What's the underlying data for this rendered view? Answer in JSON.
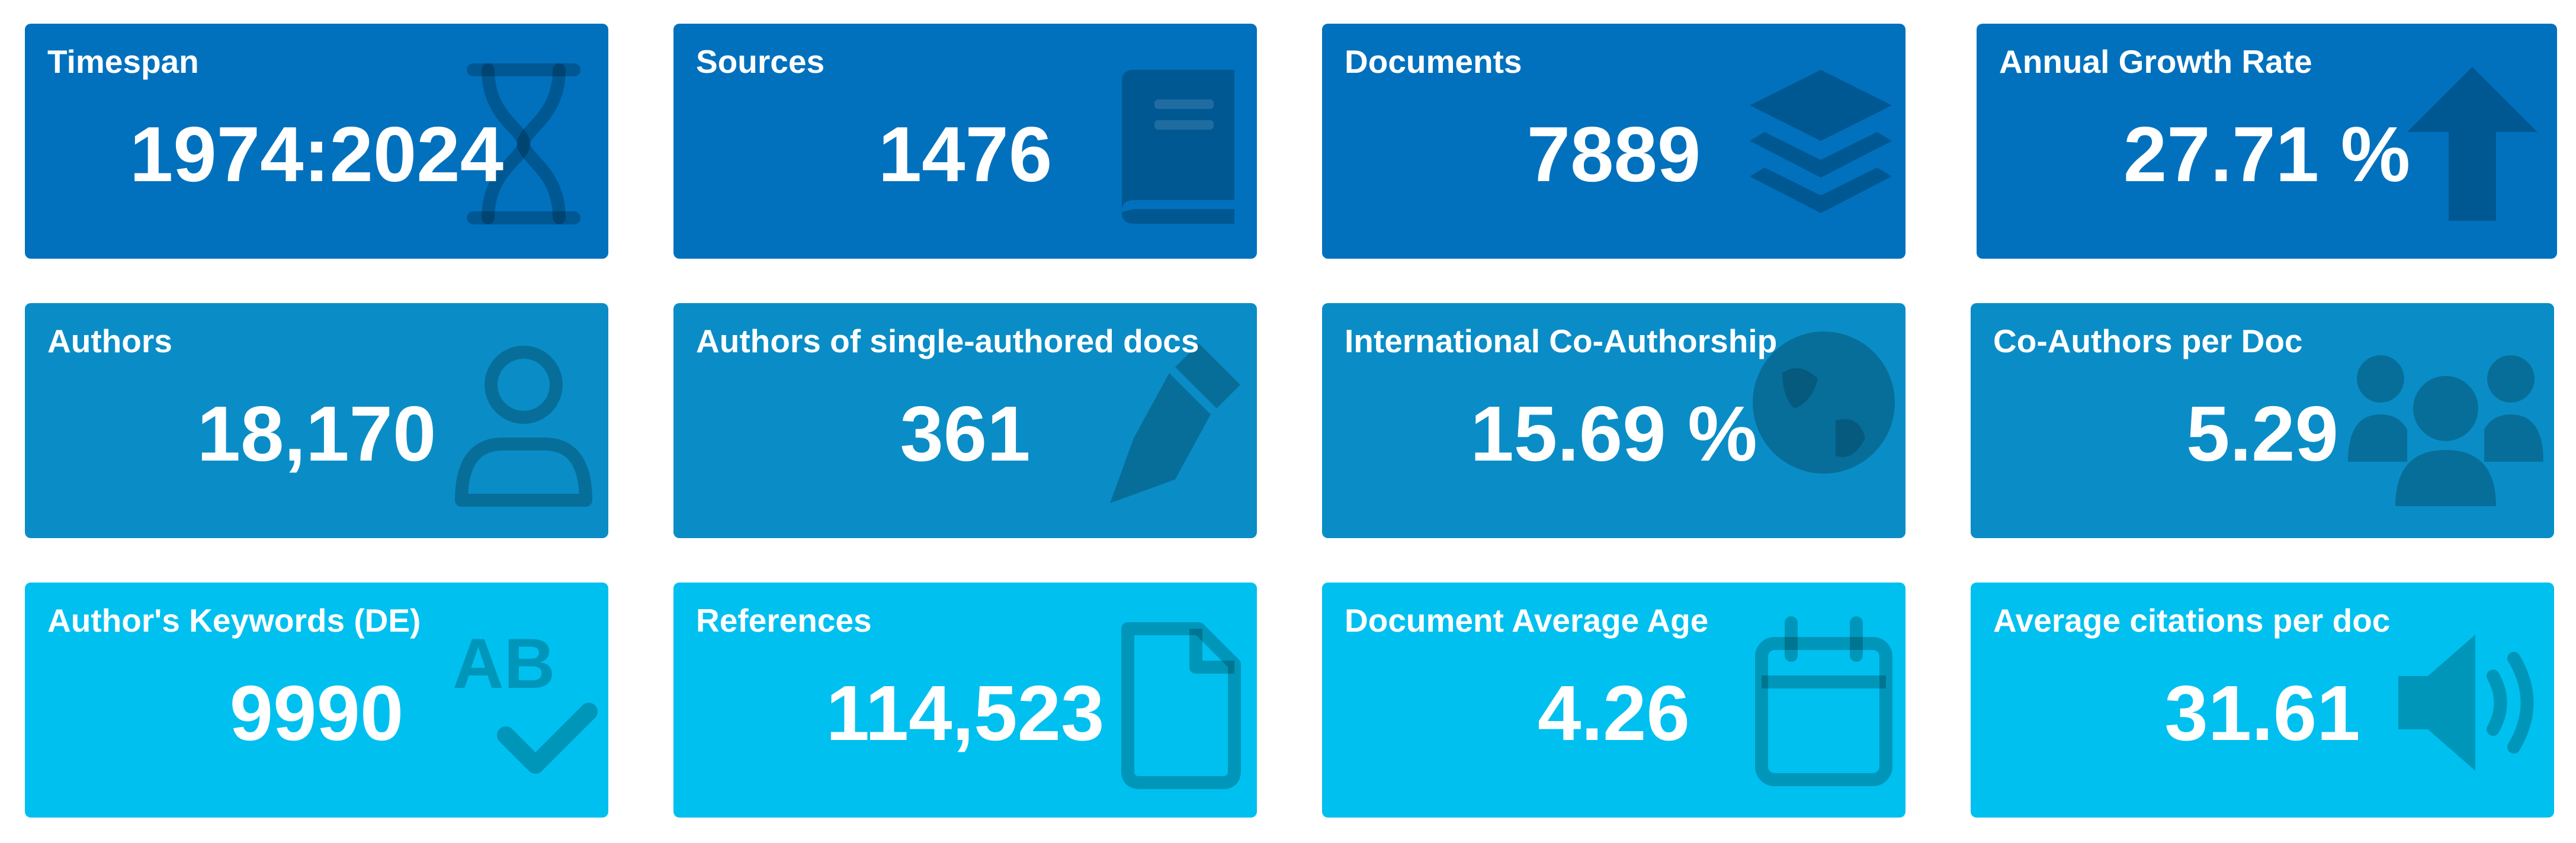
{
  "colors": {
    "row1_bg": "#0171bd",
    "row2_bg": "#0a8dc6",
    "row3_bg": "#00c0ef",
    "text": "#ffffff"
  },
  "cards": [
    {
      "title": "Timespan",
      "value": "1974:2024",
      "icon": "hourglass-icon"
    },
    {
      "title": "Sources",
      "value": "1476",
      "icon": "book-icon"
    },
    {
      "title": "Documents",
      "value": "7889",
      "icon": "layers-icon"
    },
    {
      "title": "Annual Growth Rate",
      "value": "27.71 %",
      "icon": "arrow-up-icon"
    },
    {
      "title": "Authors",
      "value": "18,170",
      "icon": "user-icon"
    },
    {
      "title": "Authors of single-authored docs",
      "value": "361",
      "icon": "pen-nib-icon"
    },
    {
      "title": "International Co-Authorship",
      "value": "15.69 %",
      "icon": "globe-icon"
    },
    {
      "title": "Co-Authors per Doc",
      "value": "5.29",
      "icon": "users-icon"
    },
    {
      "title": "Author's Keywords (DE)",
      "value": "9990",
      "icon": "spell-check-icon"
    },
    {
      "title": "References",
      "value": "114,523",
      "icon": "file-icon"
    },
    {
      "title": "Document Average Age",
      "value": "4.26",
      "icon": "calendar-icon"
    },
    {
      "title": "Average citations per doc",
      "value": "31.61",
      "icon": "volume-icon"
    }
  ]
}
